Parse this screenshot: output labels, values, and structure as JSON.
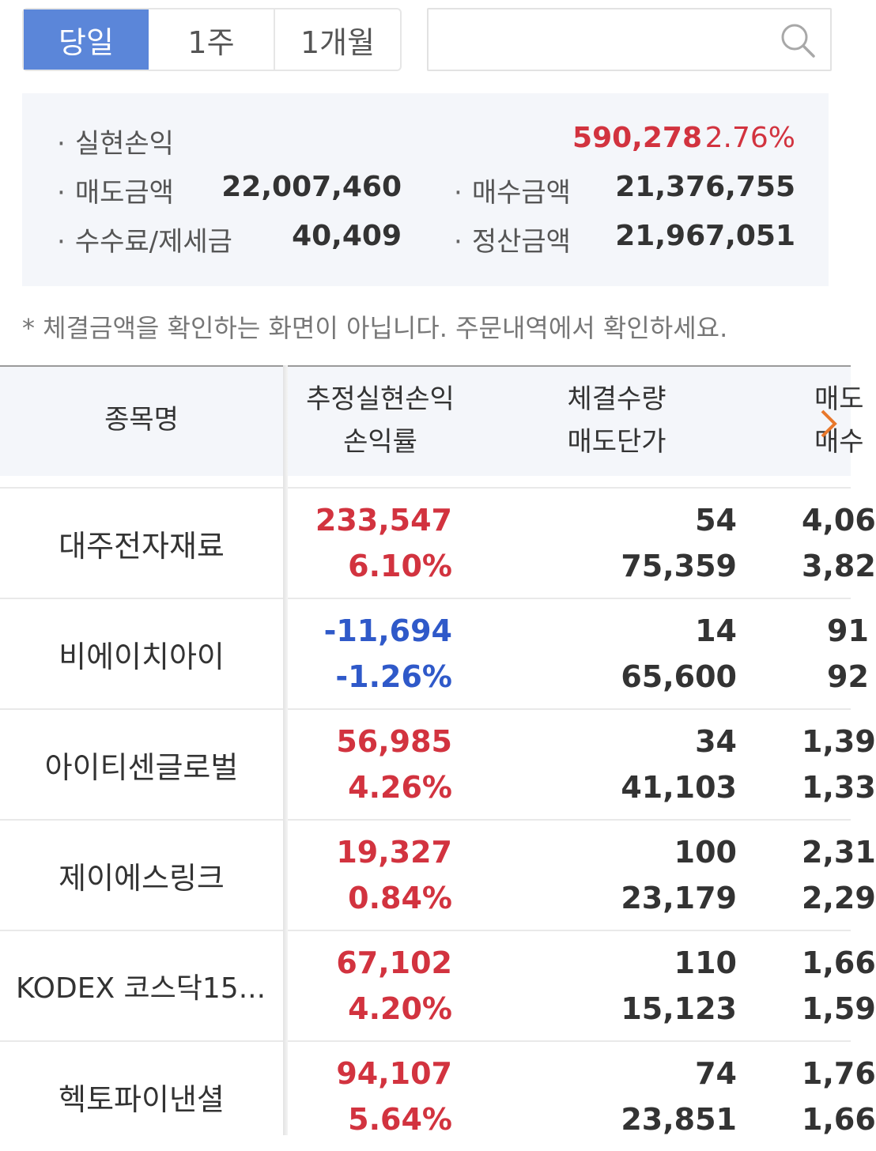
{
  "tabs": [
    {
      "label": "당일",
      "active": true
    },
    {
      "label": "1주",
      "active": false
    },
    {
      "label": "1개월",
      "active": false
    }
  ],
  "search": {
    "value": "",
    "placeholder": ""
  },
  "summary": {
    "realized_label": "실현손익",
    "realized_value": "590,278",
    "realized_rate": "2.76%",
    "sell_label": "매도금액",
    "sell_value": "22,007,460",
    "buy_label": "매수금액",
    "buy_value": "21,376,755",
    "fee_label": "수수료/제세금",
    "fee_value": "40,409",
    "settle_label": "정산금액",
    "settle_value": "21,967,051"
  },
  "note": "* 체결금액을 확인하는 화면이 아닙니다. 주문내역에서 확인하세요.",
  "table": {
    "headers": {
      "name": "종목명",
      "pl_line1": "추정실현손익",
      "pl_line2": "손익률",
      "qty_line1": "체결수량",
      "qty_line2": "매도단가",
      "cut_line1": "매도",
      "cut_line2": "매수"
    },
    "rows": [
      {
        "name": "대주전자재료",
        "pl": "233,547",
        "rate": "6.10%",
        "sign": "pos",
        "qty": "54",
        "price": "75,359",
        "cut1": "4,06",
        "cut2": "3,82"
      },
      {
        "name": "비에이치아이",
        "pl": "-11,694",
        "rate": "-1.26%",
        "sign": "neg",
        "qty": "14",
        "price": "65,600",
        "cut1": "91",
        "cut2": "92"
      },
      {
        "name": "아이티센글로벌",
        "pl": "56,985",
        "rate": "4.26%",
        "sign": "pos",
        "qty": "34",
        "price": "41,103",
        "cut1": "1,39",
        "cut2": "1,33"
      },
      {
        "name": "제이에스링크",
        "pl": "19,327",
        "rate": "0.84%",
        "sign": "pos",
        "qty": "100",
        "price": "23,179",
        "cut1": "2,31",
        "cut2": "2,29"
      },
      {
        "name": "KODEX 코스닥15...",
        "pl": "67,102",
        "rate": "4.20%",
        "sign": "pos",
        "qty": "110",
        "price": "15,123",
        "cut1": "1,66",
        "cut2": "1,59"
      },
      {
        "name": "헥토파이낸셜",
        "pl": "94,107",
        "rate": "5.64%",
        "sign": "pos",
        "qty": "74",
        "price": "23,851",
        "cut1": "1,76",
        "cut2": "1,66"
      }
    ]
  },
  "colors": {
    "accent": "#5b86d9",
    "positive": "#d2333f",
    "negative": "#2f59c9",
    "panel": "#f4f6fa"
  }
}
